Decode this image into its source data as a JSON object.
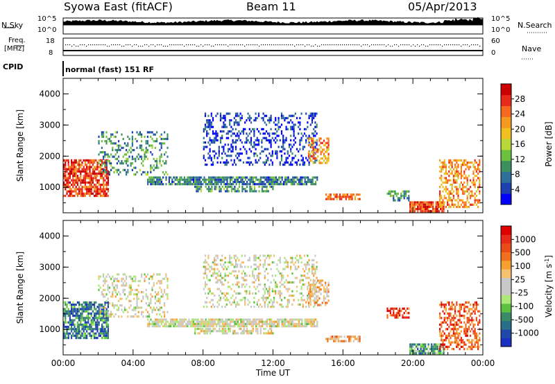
{
  "header": {
    "station": "Syowa East (fitACF)",
    "beam": "Beam 11",
    "date": "05/Apr/2013"
  },
  "top_panels": {
    "nsky_label": "N.Sky",
    "nsearch_label": "N.Search",
    "count_ticks": [
      "10^5",
      "10^0"
    ],
    "freq_label_1": "Freq.",
    "freq_label_2": "[MHz]",
    "freq_ticks": [
      "18",
      "8"
    ],
    "nave_label": "Nave",
    "nave_ticks": [
      "60",
      "0"
    ],
    "cpid_label": "CPID",
    "mode_text": "normal (fast) 151 RF"
  },
  "chart_data": [
    {
      "type": "heatmap",
      "name": "power",
      "ylabel": "Slant Range [km]",
      "xlabel": "",
      "ylim": [
        180,
        4500
      ],
      "xlim_hours": [
        0,
        24
      ],
      "y_ticks": [
        "1000",
        "2000",
        "3000",
        "4000"
      ],
      "colorbar": {
        "label": "Power [dB]",
        "ticks": [
          "4",
          "8",
          "12",
          "16",
          "20",
          "24",
          "28"
        ],
        "colors": [
          "#0000ff",
          "#1e3fb0",
          "#2f6f9a",
          "#3d8f5e",
          "#6cc040",
          "#b7d838",
          "#f0c020",
          "#f59a20",
          "#f56a20",
          "#e82a1a",
          "#cc0000"
        ]
      },
      "regions": [
        {
          "t0": 0.0,
          "t1": 2.6,
          "r0": 750,
          "r1": 1900,
          "level": 0.85,
          "density": 0.75
        },
        {
          "t0": 2.0,
          "t1": 6.0,
          "r0": 1400,
          "r1": 2800,
          "level": 0.3,
          "density": 0.3
        },
        {
          "t0": 4.8,
          "t1": 14.5,
          "r0": 1100,
          "r1": 1350,
          "level": 0.25,
          "density": 0.8
        },
        {
          "t0": 7.5,
          "t1": 12.0,
          "r0": 850,
          "r1": 1050,
          "level": 0.3,
          "density": 0.55
        },
        {
          "t0": 8.0,
          "t1": 14.5,
          "r0": 1700,
          "r1": 3400,
          "level": 0.12,
          "density": 0.3
        },
        {
          "t0": 14.0,
          "t1": 15.2,
          "r0": 1800,
          "r1": 2600,
          "level": 0.7,
          "density": 0.5
        },
        {
          "t0": 15.0,
          "t1": 17.0,
          "r0": 650,
          "r1": 800,
          "level": 0.75,
          "density": 0.7
        },
        {
          "t0": 18.5,
          "t1": 19.8,
          "r0": 600,
          "r1": 900,
          "level": 0.3,
          "density": 0.5
        },
        {
          "t0": 19.8,
          "t1": 21.8,
          "r0": 200,
          "r1": 550,
          "level": 0.85,
          "density": 0.85
        },
        {
          "t0": 21.5,
          "t1": 23.8,
          "r0": 400,
          "r1": 1900,
          "level": 0.7,
          "density": 0.5
        }
      ]
    },
    {
      "type": "heatmap",
      "name": "velocity",
      "ylabel": "Slant Range [km]",
      "xlabel": "Time UT",
      "ylim": [
        180,
        4500
      ],
      "xlim_hours": [
        0,
        24
      ],
      "y_ticks": [
        "1000",
        "2000",
        "3000",
        "4000"
      ],
      "x_ticks": [
        "00:00",
        "04:00",
        "08:00",
        "12:00",
        "16:00",
        "20:00",
        "00:00"
      ],
      "colorbar": {
        "label": "Velocity [m s",
        "label_sup": "-1",
        "label_end": "]",
        "ticks": [
          "1000",
          "500",
          "100",
          "25",
          "-25",
          "-100",
          "-500",
          "-1000"
        ],
        "colors": [
          "#1a30c0",
          "#2048a8",
          "#2a6f8a",
          "#3a8a66",
          "#5cc040",
          "#aee878",
          "#c8c8c8",
          "#c8c8c8",
          "#f5c070",
          "#f5a030",
          "#f07020",
          "#e84a18",
          "#e82a1a",
          "#e00000"
        ]
      },
      "regions": [
        {
          "t0": 0.0,
          "t1": 2.6,
          "r0": 750,
          "r1": 1900,
          "level": 0.2,
          "density": 0.75
        },
        {
          "t0": 2.0,
          "t1": 6.0,
          "r0": 1400,
          "r1": 2800,
          "level": 0.5,
          "density": 0.3
        },
        {
          "t0": 4.8,
          "t1": 14.5,
          "r0": 1100,
          "r1": 1350,
          "level": 0.5,
          "density": 0.85
        },
        {
          "t0": 7.5,
          "t1": 12.0,
          "r0": 850,
          "r1": 1050,
          "level": 0.5,
          "density": 0.55
        },
        {
          "t0": 8.0,
          "t1": 14.5,
          "r0": 1700,
          "r1": 3400,
          "level": 0.5,
          "density": 0.3
        },
        {
          "t0": 14.0,
          "t1": 15.2,
          "r0": 1800,
          "r1": 2600,
          "level": 0.6,
          "density": 0.5
        },
        {
          "t0": 15.0,
          "t1": 17.0,
          "r0": 650,
          "r1": 800,
          "level": 0.65,
          "density": 0.7
        },
        {
          "t0": 18.5,
          "t1": 19.8,
          "r0": 1400,
          "r1": 1700,
          "level": 0.85,
          "density": 0.5
        },
        {
          "t0": 19.8,
          "t1": 21.8,
          "r0": 200,
          "r1": 550,
          "level": 0.3,
          "density": 0.85
        },
        {
          "t0": 21.5,
          "t1": 23.8,
          "r0": 400,
          "r1": 1900,
          "level": 0.8,
          "density": 0.5
        }
      ]
    }
  ]
}
